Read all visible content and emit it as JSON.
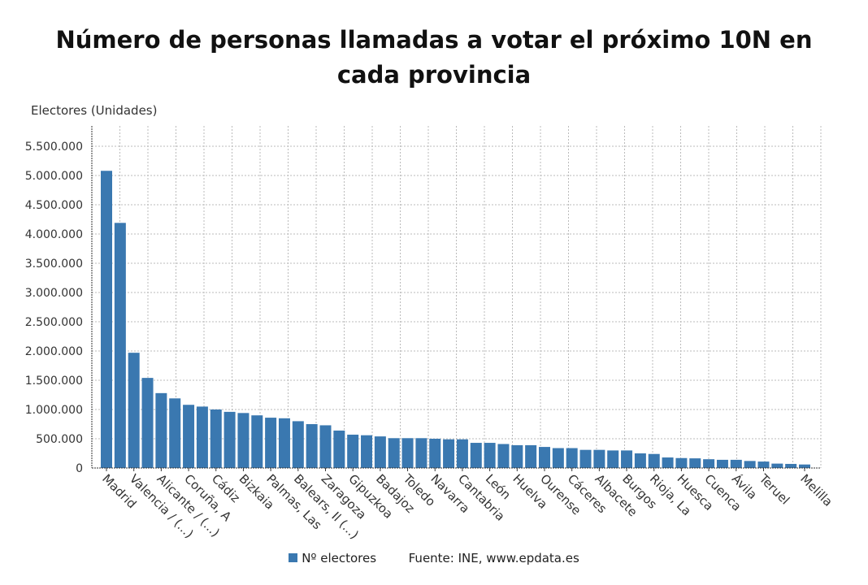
{
  "chart_data": {
    "type": "bar",
    "title": "Número de personas llamadas a votar el próximo 10N en cada provincia",
    "ylabel": "Electores (Unidades)",
    "xlabel": "",
    "ylim": [
      0,
      5500000
    ],
    "yticks": [
      "0",
      "500.000",
      "1.000.000",
      "1.500.000",
      "2.000.000",
      "2.500.000",
      "3.000.000",
      "3.500.000",
      "4.000.000",
      "4.500.000",
      "5.000.000",
      "5.500.000"
    ],
    "grid": true,
    "bar_color": "#3a78b0",
    "categories": [
      "Madrid",
      "",
      "Valencia / (...)",
      "",
      "Alicante / (...)",
      "",
      "Coruña, A",
      "",
      "Cádiz",
      "",
      "Bizkaia",
      "",
      "Palmas, Las",
      "",
      "Balears, Il (...)",
      "",
      "Zaragoza",
      "",
      "Gipuzkoa",
      "",
      "Badajoz",
      "",
      "Toledo",
      "",
      "Navarra",
      "",
      "Cantabria",
      "",
      "León",
      "",
      "Huelva",
      "",
      "Ourense",
      "",
      "Cáceres",
      "",
      "Albacete",
      "",
      "Burgos",
      "",
      "Rioja, La",
      "",
      "Huesca",
      "",
      "Cuenca",
      "",
      "Ávila",
      "",
      "Teruel",
      "",
      "",
      "Melilla"
    ],
    "series": [
      {
        "name": "Nº electores",
        "values": [
          5080000,
          4190000,
          1970000,
          1540000,
          1280000,
          1190000,
          1080000,
          1050000,
          1000000,
          960000,
          940000,
          900000,
          860000,
          850000,
          800000,
          750000,
          730000,
          640000,
          570000,
          560000,
          540000,
          510000,
          510000,
          510000,
          500000,
          490000,
          490000,
          430000,
          430000,
          410000,
          390000,
          390000,
          360000,
          340000,
          340000,
          310000,
          310000,
          300000,
          300000,
          250000,
          240000,
          180000,
          170000,
          165000,
          150000,
          140000,
          140000,
          120000,
          110000,
          75000,
          70000,
          60000
        ]
      }
    ],
    "legend_position": "bottom"
  },
  "footer": {
    "source": "Fuente: INE, www.epdata.es"
  }
}
